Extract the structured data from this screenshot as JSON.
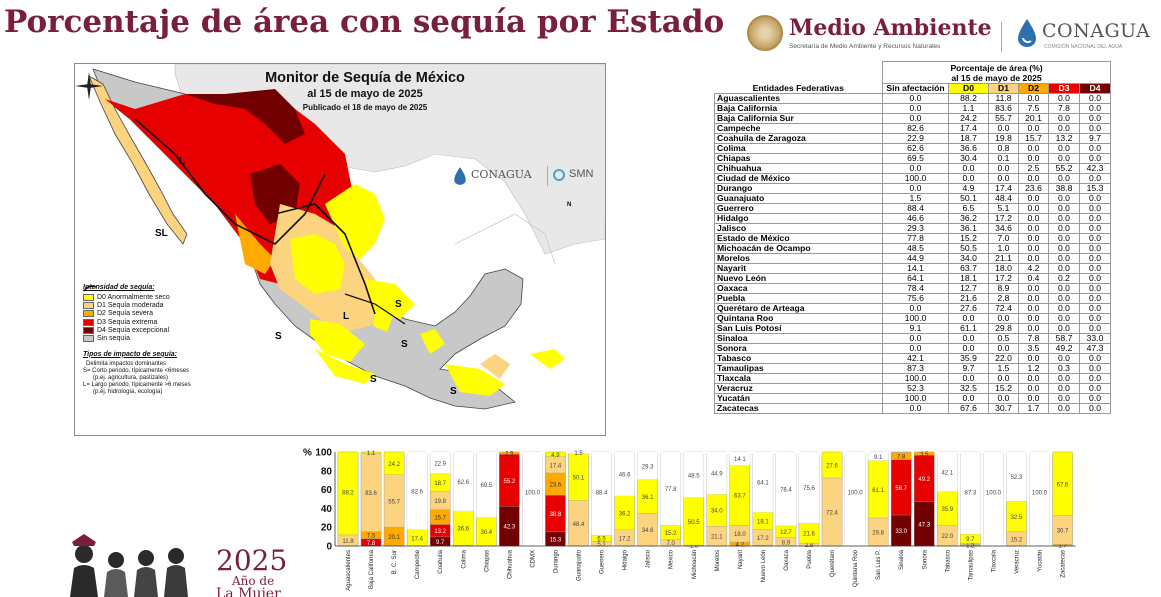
{
  "header": {
    "title": "Porcentaje de área con sequía por Estado",
    "logo_ma_name": "Medio Ambiente",
    "logo_ma_sub": "Secretaría de Medio Ambiente y Recursos Naturales",
    "logo_cna_name": "CONAGUA",
    "logo_cna_sub": "COMISIÓN NACIONAL DEL AGUA"
  },
  "map": {
    "title": "Monitor de Sequía de México",
    "date": "al 15 de mayo de 2025",
    "published": "Publicado el 18 de mayo de 2025",
    "logo_conagua": "CONAGUA",
    "logo_smn": "SMN",
    "compass_label": "N",
    "legend_heading": "Intensidad de sequía:",
    "legend": [
      {
        "label": "D0 Anormalmente seco",
        "color": "#ffff00"
      },
      {
        "label": "D1 Sequía moderada",
        "color": "#fcd37f"
      },
      {
        "label": "D2 Sequía severa",
        "color": "#ffaa00"
      },
      {
        "label": "D3 Sequía extrema",
        "color": "#e60000"
      },
      {
        "label": "D4 Sequía excepcional",
        "color": "#730000"
      },
      {
        "label": "Sin sequía",
        "color": "#c8c8c8"
      }
    ],
    "impact_heading": "Tipos de impacto de sequía:",
    "impact_line1": "Delimita impactos dominantes",
    "impact_line2": "S= Corto periodo, típicamente <6meses",
    "impact_line3": "(p.ej. agricultura, pastizales)",
    "impact_line4": "L= Largo periodo, típicamente >6 meses",
    "impact_line5": "(p.ej. hidrología, ecología)",
    "impact_marks": {
      "s": "S",
      "l": "L",
      "sl": "SL"
    }
  },
  "table": {
    "header_group": "Porcentaje de área (%)",
    "header_date": "al 15 de mayo de 2025",
    "col_entity": "Entidades Federativas",
    "col_none": "Sin afectación",
    "col_d0": "D0",
    "col_d1": "D1",
    "col_d2": "D2",
    "col_d3": "D3",
    "col_d4": "D4",
    "rows": [
      {
        "name": "Aguascalientes",
        "v": [
          "0.0",
          "88.2",
          "11.8",
          "0.0",
          "0.0",
          "0.0"
        ]
      },
      {
        "name": "Baja California",
        "v": [
          "0.0",
          "1.1",
          "83.6",
          "7.5",
          "7.8",
          "0.0"
        ]
      },
      {
        "name": "Baja California Sur",
        "v": [
          "0.0",
          "24.2",
          "55.7",
          "20.1",
          "0.0",
          "0.0"
        ]
      },
      {
        "name": "Campeche",
        "v": [
          "82.6",
          "17.4",
          "0.0",
          "0.0",
          "0.0",
          "0.0"
        ]
      },
      {
        "name": "Coahuila de Zaragoza",
        "v": [
          "22.9",
          "18.7",
          "19.8",
          "15.7",
          "13.2",
          "9.7"
        ]
      },
      {
        "name": "Colima",
        "v": [
          "62.6",
          "36.6",
          "0.8",
          "0.0",
          "0.0",
          "0.0"
        ]
      },
      {
        "name": "Chiapas",
        "v": [
          "69.5",
          "30.4",
          "0.1",
          "0.0",
          "0.0",
          "0.0"
        ]
      },
      {
        "name": "Chihuahua",
        "v": [
          "0.0",
          "0.0",
          "0.0",
          "2.5",
          "55.2",
          "42.3"
        ]
      },
      {
        "name": "Ciudad de México",
        "v": [
          "100.0",
          "0.0",
          "0.0",
          "0.0",
          "0.0",
          "0.0"
        ]
      },
      {
        "name": "Durango",
        "v": [
          "0.0",
          "4.9",
          "17.4",
          "23.6",
          "38.8",
          "15.3"
        ]
      },
      {
        "name": "Guanajuato",
        "v": [
          "1.5",
          "50.1",
          "48.4",
          "0.0",
          "0.0",
          "0.0"
        ]
      },
      {
        "name": "Guerrero",
        "v": [
          "88.4",
          "6.5",
          "5.1",
          "0.0",
          "0.0",
          "0.0"
        ]
      },
      {
        "name": "Hidalgo",
        "v": [
          "46.6",
          "36.2",
          "17.2",
          "0.0",
          "0.0",
          "0.0"
        ]
      },
      {
        "name": "Jalisco",
        "v": [
          "29.3",
          "36.1",
          "34.6",
          "0.0",
          "0.0",
          "0.0"
        ]
      },
      {
        "name": "Estado de México",
        "v": [
          "77.8",
          "15.2",
          "7.0",
          "0.0",
          "0.0",
          "0.0"
        ]
      },
      {
        "name": "Michoacán de Ocampo",
        "v": [
          "48.5",
          "50.5",
          "1.0",
          "0.0",
          "0.0",
          "0.0"
        ]
      },
      {
        "name": "Morelos",
        "v": [
          "44.9",
          "34.0",
          "21.1",
          "0.0",
          "0.0",
          "0.0"
        ]
      },
      {
        "name": "Nayarit",
        "v": [
          "14.1",
          "63.7",
          "18.0",
          "4.2",
          "0.0",
          "0.0"
        ]
      },
      {
        "name": "Nuevo León",
        "v": [
          "64.1",
          "18.1",
          "17.2",
          "0.4",
          "0.2",
          "0.0"
        ]
      },
      {
        "name": "Oaxaca",
        "v": [
          "78.4",
          "12.7",
          "8.9",
          "0.0",
          "0.0",
          "0.0"
        ]
      },
      {
        "name": "Puebla",
        "v": [
          "75.6",
          "21.6",
          "2.8",
          "0.0",
          "0.0",
          "0.0"
        ]
      },
      {
        "name": "Querétaro de Arteaga",
        "v": [
          "0.0",
          "27.6",
          "72.4",
          "0.0",
          "0.0",
          "0.0"
        ]
      },
      {
        "name": "Quintana Roo",
        "v": [
          "100.0",
          "0.0",
          "0.0",
          "0.0",
          "0.0",
          "0.0"
        ]
      },
      {
        "name": "San Luis Potosí",
        "v": [
          "9.1",
          "61.1",
          "29.8",
          "0.0",
          "0.0",
          "0.0"
        ]
      },
      {
        "name": "Sinaloa",
        "v": [
          "0.0",
          "0.0",
          "0.5",
          "7.8",
          "58.7",
          "33.0"
        ]
      },
      {
        "name": "Sonora",
        "v": [
          "0.0",
          "0.0",
          "0.0",
          "3.5",
          "49.2",
          "47.3"
        ]
      },
      {
        "name": "Tabasco",
        "v": [
          "42.1",
          "35.9",
          "22.0",
          "0.0",
          "0.0",
          "0.0"
        ]
      },
      {
        "name": "Tamaulipas",
        "v": [
          "87.3",
          "9.7",
          "1.5",
          "1.2",
          "0.3",
          "0.0"
        ]
      },
      {
        "name": "Tlaxcala",
        "v": [
          "100.0",
          "0.0",
          "0.0",
          "0.0",
          "0.0",
          "0.0"
        ]
      },
      {
        "name": "Veracruz",
        "v": [
          "52.3",
          "32.5",
          "15.2",
          "0.0",
          "0.0",
          "0.0"
        ]
      },
      {
        "name": "Yucatán",
        "v": [
          "100.0",
          "0.0",
          "0.0",
          "0.0",
          "0.0",
          "0.0"
        ]
      },
      {
        "name": "Zacatecas",
        "v": [
          "0.0",
          "67.6",
          "30.7",
          "1.7",
          "0.0",
          "0.0"
        ]
      }
    ]
  },
  "chart_data": {
    "type": "bar",
    "stacked": true,
    "y_axis_label": "%",
    "ylim": [
      0,
      100
    ],
    "yticks": [
      "100",
      "80",
      "60",
      "40",
      "20",
      "0"
    ],
    "categories": [
      "Aguascalientes",
      "Baja California",
      "B. C. Sur",
      "Campeche",
      "Coahuila",
      "Colima",
      "Chiapas",
      "Chihuahua",
      "CDMX",
      "Durango",
      "Guanajuato",
      "Guerrero",
      "Hidalgo",
      "Jalisco",
      "México",
      "Michoacán",
      "Morelos",
      "Nayarit",
      "Nuevo León",
      "Oaxaca",
      "Puebla",
      "Querétaro",
      "Quintana Roo",
      "San Luis P.",
      "Sinaloa",
      "Sonora",
      "Tabasco",
      "Tamaulipas",
      "Tlaxcala",
      "Veracruz",
      "Yucatán",
      "Zacatecas"
    ],
    "series_colors": [
      "#ffffff",
      "#ffff00",
      "#fcd37f",
      "#ffaa00",
      "#e60000",
      "#730000"
    ],
    "series": [
      {
        "values": [
          0,
          0,
          0,
          82.6,
          22.9,
          62.6,
          69.5,
          0,
          100,
          0,
          1.5,
          88.4,
          46.6,
          29.3,
          77.8,
          48.5,
          44.9,
          14.1,
          64.1,
          78.4,
          75.6,
          0,
          100,
          9.1,
          0,
          0,
          42.1,
          87.3,
          100,
          52.3,
          100,
          0
        ]
      },
      {
        "values": [
          88.2,
          1.1,
          24.2,
          17.4,
          18.7,
          36.6,
          30.4,
          0,
          0,
          4.9,
          50.1,
          6.5,
          36.2,
          36.1,
          15.2,
          50.5,
          34.0,
          63.7,
          18.1,
          12.7,
          21.6,
          27.6,
          0,
          61.1,
          0,
          0,
          35.9,
          9.7,
          0,
          32.5,
          0,
          67.6
        ]
      },
      {
        "values": [
          11.8,
          83.6,
          55.7,
          0,
          19.8,
          0.8,
          0.1,
          0,
          0,
          17.4,
          48.4,
          5.1,
          17.2,
          34.6,
          7.0,
          1.0,
          21.1,
          18.0,
          17.2,
          8.9,
          2.8,
          72.4,
          0,
          29.8,
          0.5,
          0,
          22.0,
          1.5,
          0,
          15.2,
          0,
          30.7
        ]
      },
      {
        "values": [
          0,
          7.5,
          20.1,
          0,
          15.7,
          0,
          0,
          2.5,
          0,
          23.6,
          0,
          0,
          0,
          0,
          0,
          0,
          0,
          4.2,
          0.4,
          0,
          0,
          0,
          0,
          0,
          7.8,
          3.5,
          0,
          1.2,
          0,
          0,
          0,
          1.7
        ]
      },
      {
        "values": [
          0,
          7.8,
          0,
          0,
          13.2,
          0,
          0,
          55.2,
          0,
          38.8,
          0,
          0,
          0,
          0,
          0,
          0,
          0,
          0,
          0.2,
          0,
          0,
          0,
          0,
          0,
          58.7,
          49.2,
          0,
          0.3,
          0,
          0,
          0,
          0
        ]
      },
      {
        "values": [
          0,
          0,
          0,
          0,
          9.7,
          0,
          0,
          42.3,
          0,
          15.3,
          0,
          0,
          0,
          0,
          0,
          0,
          0,
          0,
          0,
          0,
          0,
          0,
          0,
          0,
          33.0,
          47.3,
          0,
          0,
          0,
          0,
          0,
          0
        ]
      }
    ]
  },
  "footer": {
    "year": "2025",
    "line1": "Año de",
    "line2": "La Mujer"
  }
}
